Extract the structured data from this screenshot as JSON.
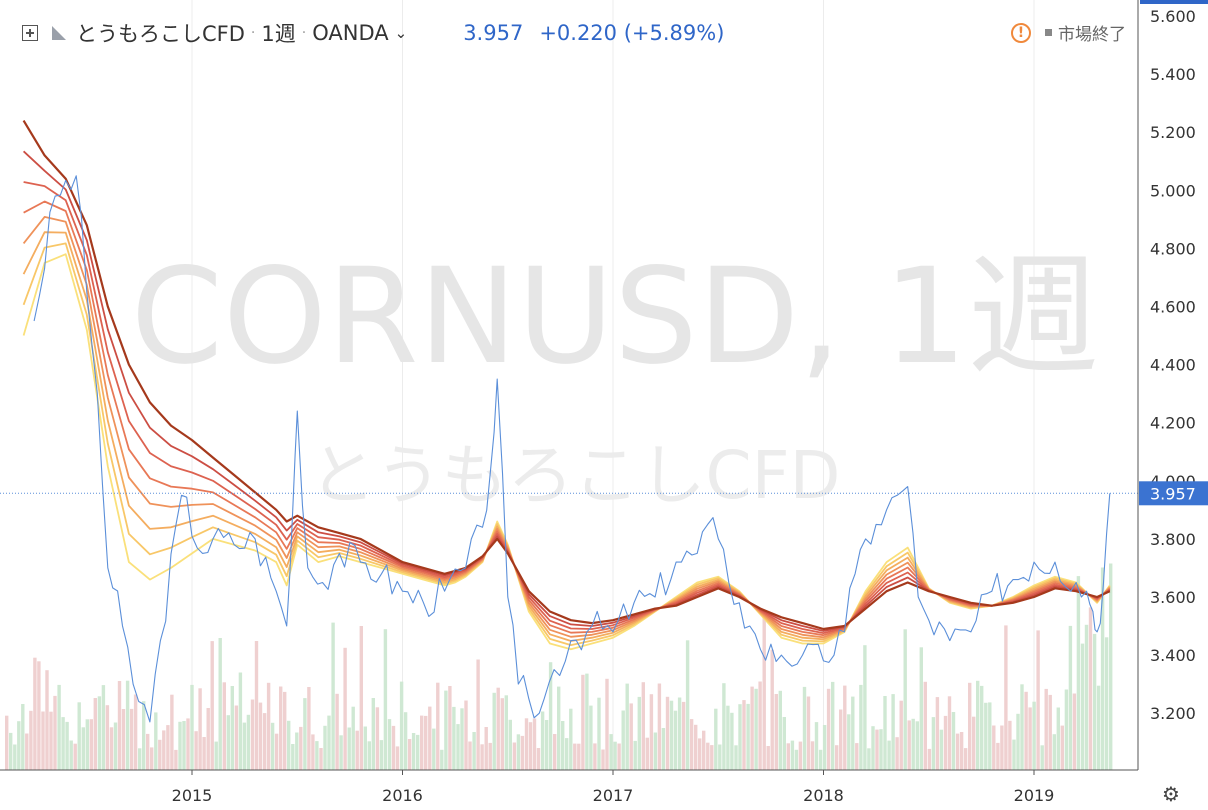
{
  "header": {
    "symbol_name": "とうもろこしCFD",
    "interval": "1週",
    "exchange": "OANDA",
    "last_price": "3.957",
    "change": "+0.220 (+5.89%)",
    "market_status": "市場終了"
  },
  "watermark": {
    "line1": "CORNUSD, 1週",
    "line2": "とうもろこしCFD"
  },
  "icons": {
    "add": "plus-square-icon",
    "symbol": "symbol-icon",
    "dropdown": "chevron-down-icon",
    "warning": "warning-icon",
    "settings": "gear-icon"
  },
  "colors": {
    "price_line": "#5b8fd9",
    "price_text": "#2f66c8",
    "ribbon": [
      "#fae07a",
      "#f8c768",
      "#f4ad5f",
      "#ef925a",
      "#e87856",
      "#dd6250",
      "#cc4e44",
      "#a5391c"
    ],
    "vol_up": "#cfe8d3",
    "vol_down": "#efd0d0"
  },
  "chart_data": {
    "type": "line",
    "title": "CORNUSD, 1週",
    "x_ticks": [
      "2015",
      "2016",
      "2017",
      "2018",
      "2019"
    ],
    "y_ticks": [
      "5.600",
      "5.400",
      "5.200",
      "5.000",
      "4.800",
      "4.600",
      "4.400",
      "4.200",
      "4.000",
      "3.800",
      "3.600",
      "3.400",
      "3.200"
    ],
    "ylim": [
      3.05,
      5.65
    ],
    "last_value_label": "3.957",
    "last_value": 3.957,
    "series_price": {
      "x": [
        2014.25,
        2014.35,
        2014.45,
        2014.5,
        2014.55,
        2014.6,
        2014.67,
        2014.72,
        2014.8,
        2014.85,
        2014.95,
        2015.05,
        2015.1,
        2015.2,
        2015.3,
        2015.4,
        2015.45,
        2015.48,
        2015.5,
        2015.55,
        2015.62,
        2015.7,
        2015.8,
        2015.9,
        2016.0,
        2016.1,
        2016.2,
        2016.3,
        2016.38,
        2016.42,
        2016.45,
        2016.5,
        2016.55,
        2016.6,
        2016.65,
        2016.72,
        2016.8,
        2016.9,
        2017.0,
        2017.1,
        2017.2,
        2017.3,
        2017.4,
        2017.45,
        2017.5,
        2017.55,
        2017.6,
        2017.65,
        2017.7,
        2017.8,
        2017.9,
        2018.0,
        2018.1,
        2018.15,
        2018.2,
        2018.25,
        2018.3,
        2018.35,
        2018.4,
        2018.45,
        2018.5,
        2018.6,
        2018.7,
        2018.8,
        2018.9,
        2019.0,
        2019.1,
        2019.2,
        2019.25,
        2019.28,
        2019.3,
        2019.33,
        2019.36
      ],
      "y": [
        4.55,
        4.98,
        5.05,
        4.65,
        4.3,
        3.7,
        3.5,
        3.3,
        3.17,
        3.45,
        3.95,
        3.75,
        3.8,
        3.78,
        3.8,
        3.62,
        3.5,
        3.92,
        4.24,
        3.7,
        3.65,
        3.75,
        3.72,
        3.68,
        3.62,
        3.58,
        3.62,
        3.7,
        3.84,
        4.05,
        4.35,
        3.6,
        3.3,
        3.25,
        3.2,
        3.35,
        3.45,
        3.5,
        3.48,
        3.58,
        3.6,
        3.72,
        3.75,
        3.85,
        3.8,
        3.65,
        3.58,
        3.5,
        3.42,
        3.4,
        3.4,
        3.38,
        3.48,
        3.68,
        3.8,
        3.85,
        3.9,
        3.95,
        3.98,
        3.6,
        3.52,
        3.45,
        3.48,
        3.62,
        3.66,
        3.72,
        3.72,
        3.65,
        3.62,
        3.55,
        3.48,
        3.65,
        3.957
      ]
    },
    "series_ribbon": {
      "x": [
        2014.2,
        2014.3,
        2014.4,
        2014.5,
        2014.6,
        2014.7,
        2014.8,
        2014.9,
        2015.0,
        2015.1,
        2015.2,
        2015.3,
        2015.4,
        2015.45,
        2015.5,
        2015.6,
        2015.7,
        2015.8,
        2015.9,
        2016.0,
        2016.1,
        2016.2,
        2016.25,
        2016.3,
        2016.38,
        2016.45,
        2016.5,
        2016.6,
        2016.7,
        2016.8,
        2016.9,
        2017.0,
        2017.1,
        2017.2,
        2017.3,
        2017.4,
        2017.5,
        2017.6,
        2017.7,
        2017.8,
        2017.9,
        2018.0,
        2018.1,
        2018.2,
        2018.3,
        2018.4,
        2018.5,
        2018.6,
        2018.7,
        2018.8,
        2018.9,
        2019.0,
        2019.1,
        2019.2,
        2019.3,
        2019.36
      ],
      "outer_slow": [
        5.24,
        5.12,
        5.04,
        4.88,
        4.6,
        4.4,
        4.27,
        4.19,
        4.14,
        4.08,
        4.02,
        3.96,
        3.9,
        3.86,
        3.88,
        3.84,
        3.82,
        3.8,
        3.76,
        3.72,
        3.7,
        3.68,
        3.69,
        3.7,
        3.74,
        3.8,
        3.75,
        3.62,
        3.55,
        3.52,
        3.51,
        3.52,
        3.54,
        3.56,
        3.57,
        3.6,
        3.63,
        3.6,
        3.56,
        3.53,
        3.51,
        3.49,
        3.5,
        3.56,
        3.62,
        3.65,
        3.62,
        3.6,
        3.58,
        3.57,
        3.58,
        3.6,
        3.63,
        3.62,
        3.6,
        3.62
      ],
      "inner_fast": [
        4.5,
        4.75,
        4.78,
        4.52,
        4.05,
        3.72,
        3.66,
        3.7,
        3.75,
        3.8,
        3.78,
        3.76,
        3.72,
        3.64,
        3.78,
        3.72,
        3.74,
        3.72,
        3.7,
        3.68,
        3.66,
        3.64,
        3.65,
        3.67,
        3.72,
        3.86,
        3.78,
        3.55,
        3.44,
        3.42,
        3.44,
        3.46,
        3.5,
        3.55,
        3.6,
        3.65,
        3.67,
        3.62,
        3.54,
        3.46,
        3.44,
        3.44,
        3.48,
        3.62,
        3.72,
        3.77,
        3.63,
        3.58,
        3.56,
        3.57,
        3.6,
        3.64,
        3.67,
        3.65,
        3.58,
        3.64
      ]
    },
    "volume_bars": {
      "count": 275,
      "relative_height_max": 1.0
    }
  }
}
